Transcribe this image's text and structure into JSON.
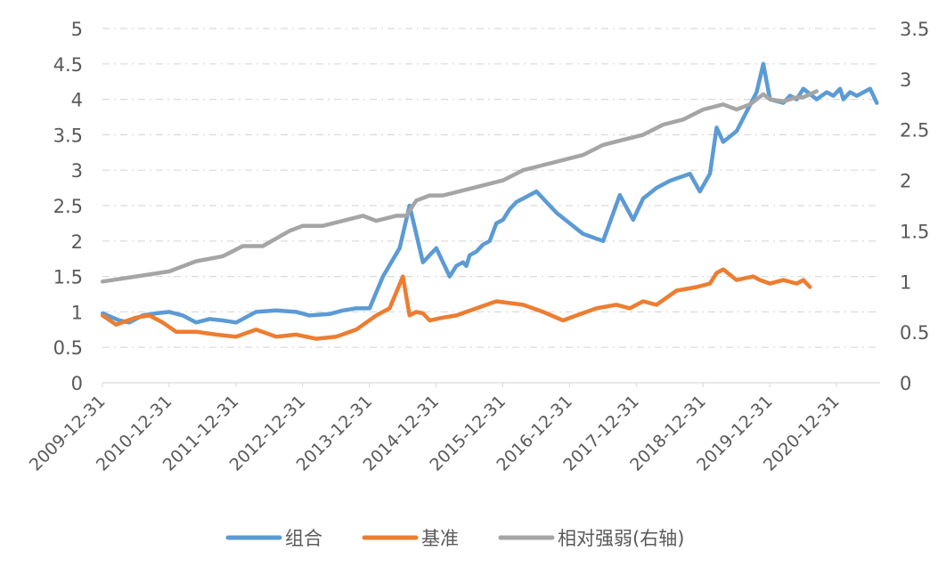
{
  "chart_data": {
    "type": "line",
    "title": "",
    "x_ticks": [
      "2009-12-31",
      "2010-12-31",
      "2011-12-31",
      "2012-12-31",
      "2013-12-31",
      "2014-12-31",
      "2015-12-31",
      "2016-12-31",
      "2017-12-31",
      "2018-12-31",
      "2019-12-31",
      "2020-12-31"
    ],
    "x_range": [
      2009.997,
      2021.65
    ],
    "y_left": {
      "ticks": [
        "5",
        "4.5",
        "4",
        "3.5",
        "3",
        "2.5",
        "2",
        "1.5",
        "1",
        "0.5",
        "0"
      ],
      "min": 0,
      "max": 5
    },
    "y_right": {
      "ticks": [
        "3.5",
        "3",
        "2.5",
        "2",
        "1.5",
        "1",
        "0.5",
        "0"
      ],
      "min": 0,
      "max": 3.5
    },
    "grid": "horizontal dashed",
    "legend_position": "bottom",
    "series": [
      {
        "name": "组合",
        "axis": "left",
        "color": "#5b9bd5",
        "x": [
          2010.0,
          2010.25,
          2010.4,
          2010.6,
          2010.8,
          2011.0,
          2011.2,
          2011.4,
          2011.6,
          2011.8,
          2012.0,
          2012.3,
          2012.6,
          2012.9,
          2013.1,
          2013.4,
          2013.6,
          2013.8,
          2014.0,
          2014.2,
          2014.45,
          2014.6,
          2014.8,
          2015.0,
          2015.2,
          2015.3,
          2015.4,
          2015.45,
          2015.5,
          2015.6,
          2015.7,
          2015.8,
          2015.9,
          2016.0,
          2016.1,
          2016.2,
          2016.5,
          2016.8,
          2017.0,
          2017.2,
          2017.5,
          2017.75,
          2017.95,
          2018.1,
          2018.3,
          2018.5,
          2018.8,
          2018.95,
          2019.1,
          2019.2,
          2019.3,
          2019.5,
          2019.8,
          2019.9,
          2020.0,
          2020.2,
          2020.3,
          2020.4,
          2020.5,
          2020.7,
          2020.85,
          2020.95,
          2021.05,
          2021.1,
          2021.2,
          2021.3,
          2021.5,
          2021.6
        ],
        "y": [
          0.98,
          0.88,
          0.85,
          0.95,
          0.98,
          1.0,
          0.95,
          0.85,
          0.9,
          0.88,
          0.85,
          1.0,
          1.02,
          1.0,
          0.95,
          0.97,
          1.02,
          1.05,
          1.05,
          1.5,
          1.9,
          2.5,
          1.7,
          1.9,
          1.5,
          1.65,
          1.7,
          1.65,
          1.8,
          1.85,
          1.95,
          2.0,
          2.25,
          2.3,
          2.45,
          2.55,
          2.7,
          2.4,
          2.25,
          2.1,
          2.0,
          2.65,
          2.3,
          2.6,
          2.75,
          2.85,
          2.95,
          2.7,
          2.95,
          3.6,
          3.4,
          3.55,
          4.1,
          4.5,
          4.0,
          3.95,
          4.05,
          4.0,
          4.15,
          4.0,
          4.1,
          4.05,
          4.15,
          4.0,
          4.1,
          4.05,
          4.15,
          3.95
        ]
      },
      {
        "name": "基准",
        "axis": "left",
        "color": "#ed7d31",
        "x": [
          2010.0,
          2010.2,
          2010.5,
          2010.7,
          2010.9,
          2011.1,
          2011.4,
          2011.7,
          2012.0,
          2012.3,
          2012.6,
          2012.9,
          2013.2,
          2013.5,
          2013.8,
          2014.1,
          2014.3,
          2014.5,
          2014.6,
          2014.7,
          2014.8,
          2014.9,
          2015.0,
          2015.1,
          2015.3,
          2015.6,
          2015.9,
          2016.3,
          2016.6,
          2016.9,
          2017.1,
          2017.4,
          2017.7,
          2017.9,
          2018.1,
          2018.3,
          2018.6,
          2018.9,
          2019.1,
          2019.2,
          2019.3,
          2019.5,
          2019.75,
          2019.85,
          2020.0,
          2020.2,
          2020.4,
          2020.5,
          2020.6
        ],
        "y": [
          0.95,
          0.82,
          0.92,
          0.95,
          0.85,
          0.72,
          0.72,
          0.68,
          0.65,
          0.75,
          0.65,
          0.68,
          0.62,
          0.65,
          0.75,
          0.95,
          1.05,
          1.5,
          0.95,
          1.0,
          0.98,
          0.88,
          0.9,
          0.92,
          0.95,
          1.05,
          1.15,
          1.1,
          1.0,
          0.88,
          0.95,
          1.05,
          1.1,
          1.05,
          1.15,
          1.1,
          1.3,
          1.35,
          1.4,
          1.55,
          1.6,
          1.45,
          1.5,
          1.45,
          1.4,
          1.45,
          1.4,
          1.45,
          1.35
        ]
      },
      {
        "name": "相对强弱(右轴)",
        "axis": "right",
        "color": "#a5a5a5",
        "x": [
          2010.0,
          2010.5,
          2011.0,
          2011.4,
          2011.8,
          2012.1,
          2012.4,
          2012.8,
          2013.0,
          2013.3,
          2013.6,
          2013.9,
          2014.1,
          2014.4,
          2014.55,
          2014.7,
          2014.9,
          2015.1,
          2015.4,
          2015.7,
          2016.0,
          2016.3,
          2016.6,
          2016.9,
          2017.2,
          2017.5,
          2017.8,
          2018.1,
          2018.4,
          2018.7,
          2019.0,
          2019.3,
          2019.5,
          2019.7,
          2019.9,
          2020.0,
          2020.2,
          2020.4,
          2020.5,
          2020.6,
          2020.7
        ],
        "y": [
          1.0,
          1.05,
          1.1,
          1.2,
          1.25,
          1.35,
          1.35,
          1.5,
          1.55,
          1.55,
          1.6,
          1.65,
          1.6,
          1.65,
          1.65,
          1.8,
          1.85,
          1.85,
          1.9,
          1.95,
          2.0,
          2.1,
          2.15,
          2.2,
          2.25,
          2.35,
          2.4,
          2.45,
          2.55,
          2.6,
          2.7,
          2.75,
          2.7,
          2.75,
          2.85,
          2.8,
          2.78,
          2.82,
          2.82,
          2.85,
          2.88
        ]
      }
    ]
  }
}
